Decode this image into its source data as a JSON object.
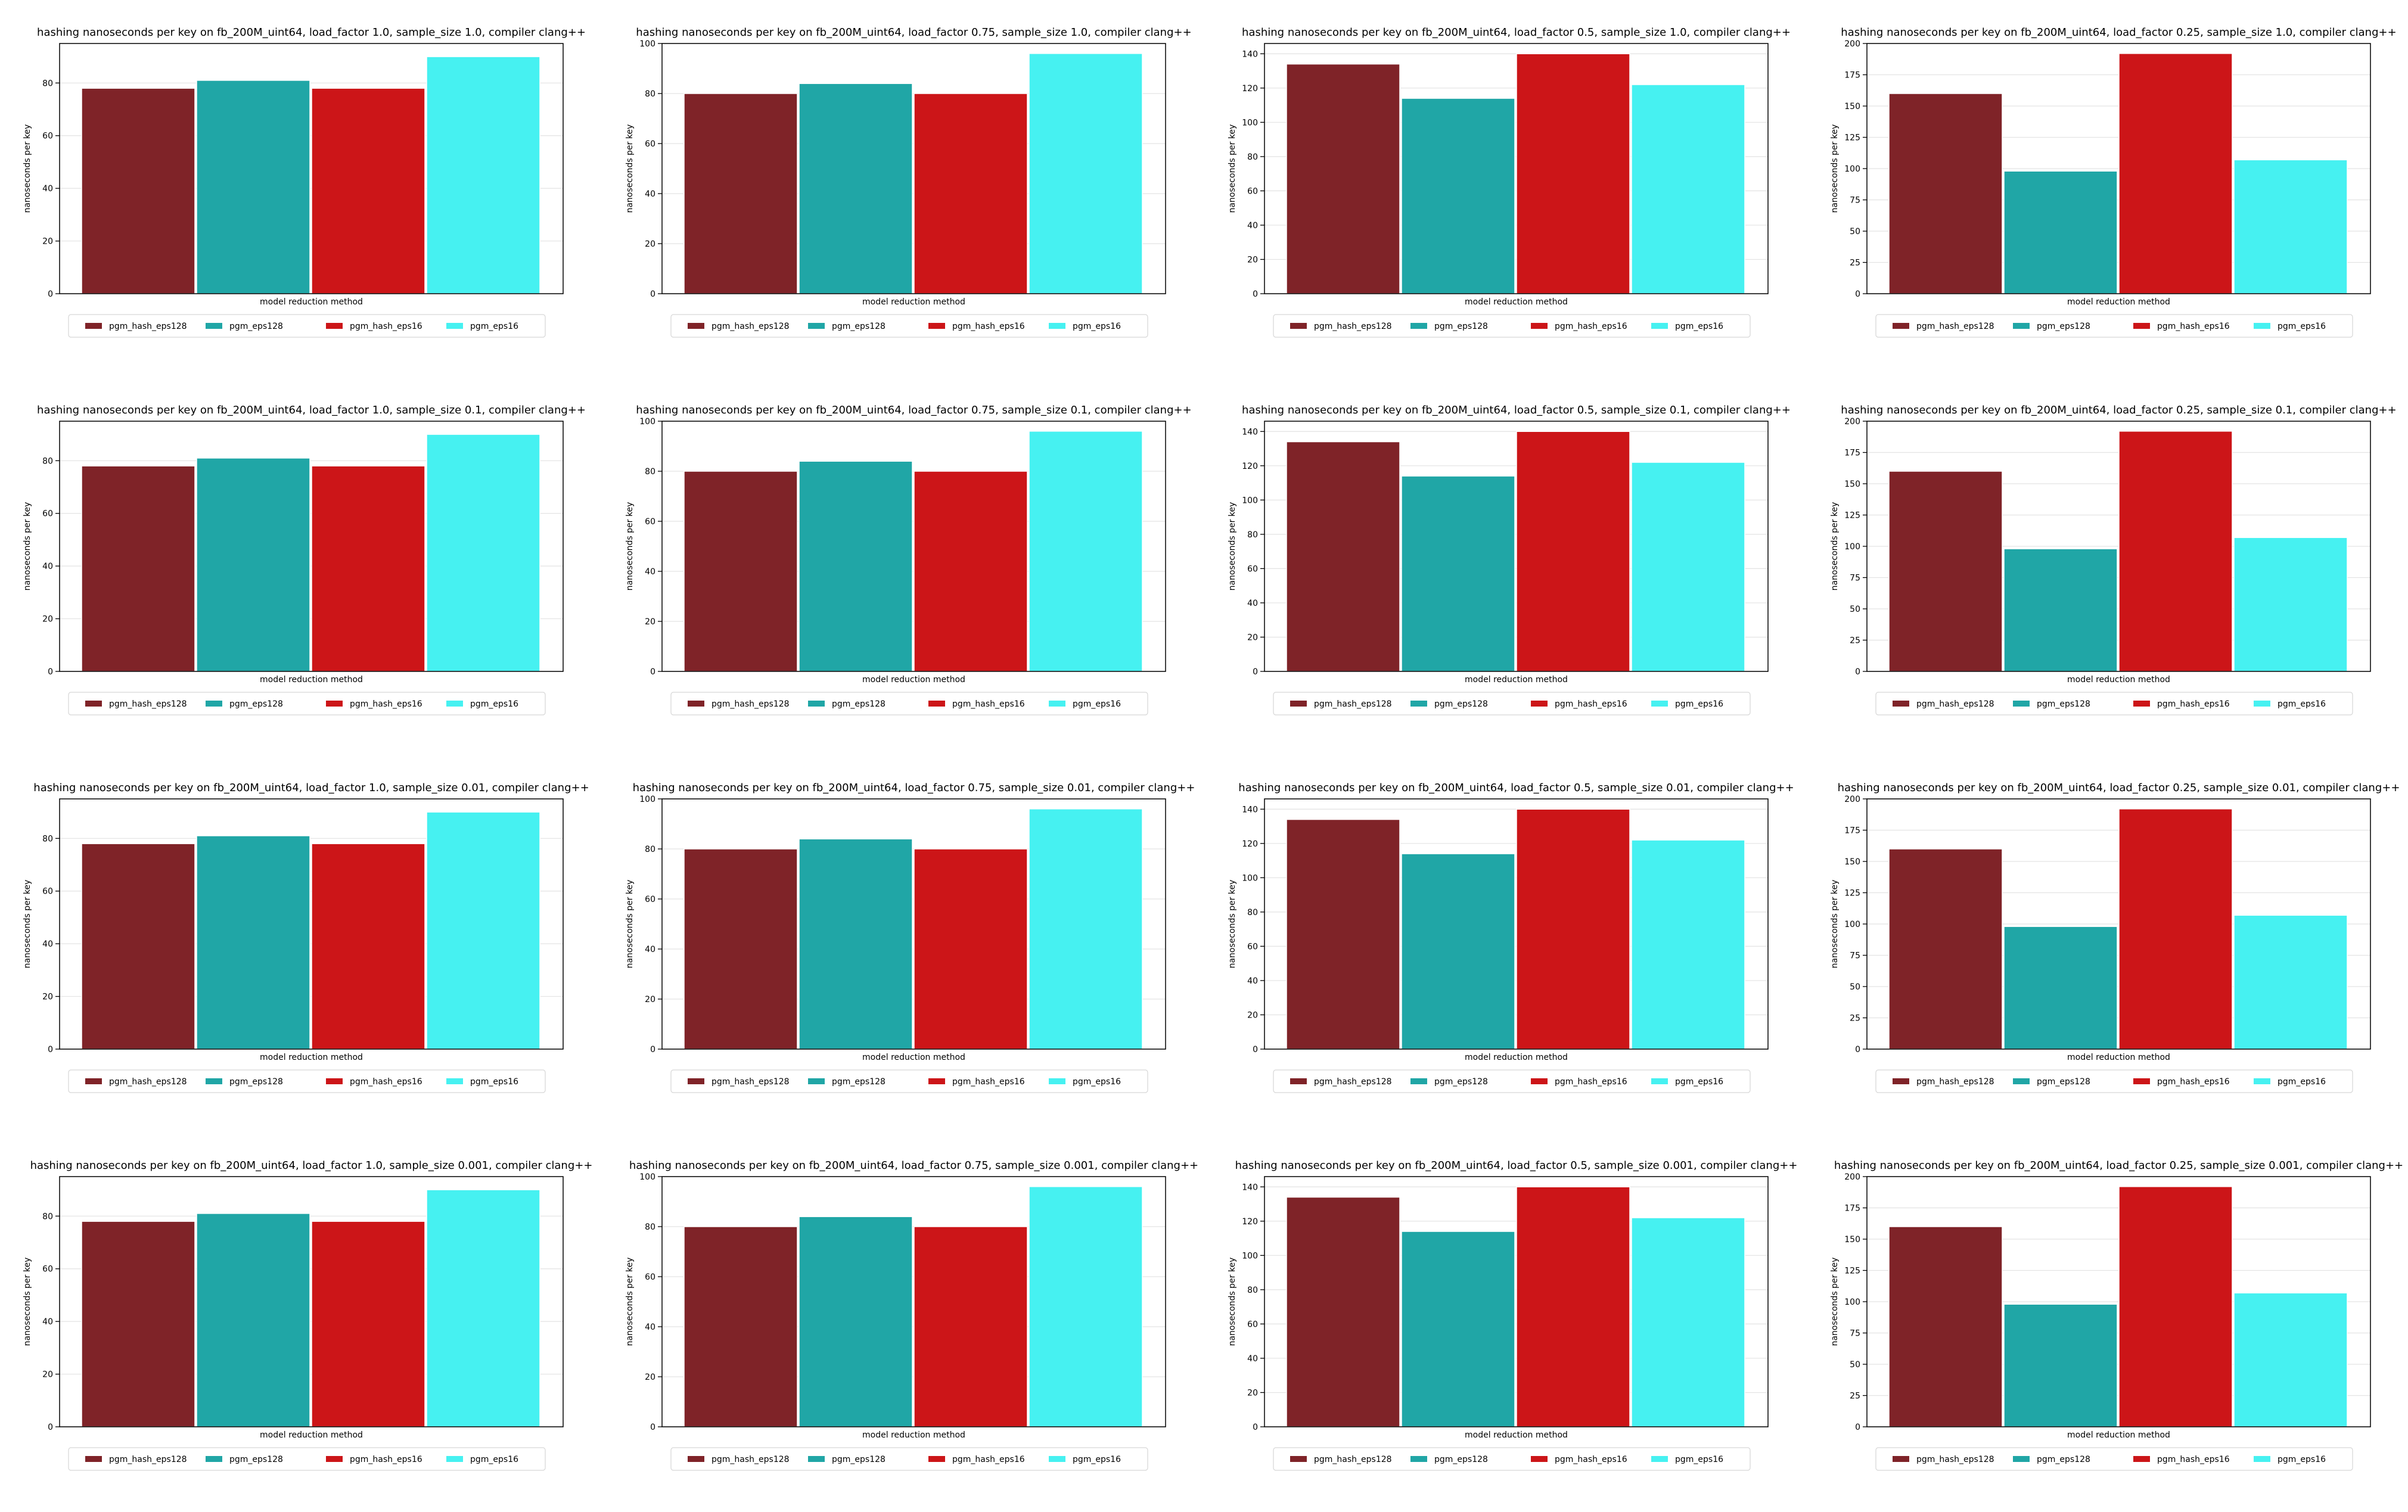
{
  "chart_data": {
    "type": "bar",
    "layout": {
      "rows": 4,
      "cols": 4
    },
    "series_names": [
      "pgm_hash_eps128",
      "pgm_eps128",
      "pgm_hash_eps16",
      "pgm_eps16"
    ],
    "colors": [
      "#7f2328",
      "#20a6a6",
      "#cc1518",
      "#46f1f1"
    ],
    "grid": true,
    "legend_position": "below",
    "charts": [
      {
        "title": "hashing nanoseconds per key on fb_200M_uint64, load_factor 1.0, sample_size 1.0, compiler clang++",
        "xlabel": "model reduction method",
        "ylabel": "nanoseconds per key",
        "ylim": [
          0,
          95
        ],
        "yticks": [
          0,
          20,
          40,
          60,
          80
        ],
        "series": [
          {
            "name": "pgm_hash_eps128",
            "values": [
              78
            ]
          },
          {
            "name": "pgm_eps128",
            "values": [
              81
            ]
          },
          {
            "name": "pgm_hash_eps16",
            "values": [
              78
            ]
          },
          {
            "name": "pgm_eps16",
            "values": [
              90
            ]
          }
        ]
      },
      {
        "title": "hashing nanoseconds per key on fb_200M_uint64, load_factor 0.75, sample_size 1.0, compiler clang++",
        "xlabel": "model reduction method",
        "ylabel": "nanoseconds per key",
        "ylim": [
          0,
          100
        ],
        "yticks": [
          0,
          20,
          40,
          60,
          80,
          100
        ],
        "series": [
          {
            "name": "pgm_hash_eps128",
            "values": [
              80
            ]
          },
          {
            "name": "pgm_eps128",
            "values": [
              84
            ]
          },
          {
            "name": "pgm_hash_eps16",
            "values": [
              80
            ]
          },
          {
            "name": "pgm_eps16",
            "values": [
              96
            ]
          }
        ]
      },
      {
        "title": "hashing nanoseconds per key on fb_200M_uint64, load_factor 0.5, sample_size 1.0, compiler clang++",
        "xlabel": "model reduction method",
        "ylabel": "nanoseconds per key",
        "ylim": [
          0,
          146
        ],
        "yticks": [
          0,
          20,
          40,
          60,
          80,
          100,
          120,
          140
        ],
        "series": [
          {
            "name": "pgm_hash_eps128",
            "values": [
              134
            ]
          },
          {
            "name": "pgm_eps128",
            "values": [
              114
            ]
          },
          {
            "name": "pgm_hash_eps16",
            "values": [
              140
            ]
          },
          {
            "name": "pgm_eps16",
            "values": [
              122
            ]
          }
        ]
      },
      {
        "title": "hashing nanoseconds per key on fb_200M_uint64, load_factor 0.25, sample_size 1.0, compiler clang++",
        "xlabel": "model reduction method",
        "ylabel": "nanoseconds per key",
        "ylim": [
          0,
          200
        ],
        "yticks": [
          0,
          25,
          50,
          75,
          100,
          125,
          150,
          175,
          200
        ],
        "series": [
          {
            "name": "pgm_hash_eps128",
            "values": [
              160
            ]
          },
          {
            "name": "pgm_eps128",
            "values": [
              98
            ]
          },
          {
            "name": "pgm_hash_eps16",
            "values": [
              192
            ]
          },
          {
            "name": "pgm_eps16",
            "values": [
              107
            ]
          }
        ]
      },
      {
        "title": "hashing nanoseconds per key on fb_200M_uint64, load_factor 1.0, sample_size 0.1, compiler clang++",
        "xlabel": "model reduction method",
        "ylabel": "nanoseconds per key",
        "ylim": [
          0,
          95
        ],
        "yticks": [
          0,
          20,
          40,
          60,
          80
        ],
        "series": [
          {
            "name": "pgm_hash_eps128",
            "values": [
              78
            ]
          },
          {
            "name": "pgm_eps128",
            "values": [
              81
            ]
          },
          {
            "name": "pgm_hash_eps16",
            "values": [
              78
            ]
          },
          {
            "name": "pgm_eps16",
            "values": [
              90
            ]
          }
        ]
      },
      {
        "title": "hashing nanoseconds per key on fb_200M_uint64, load_factor 0.75, sample_size 0.1, compiler clang++",
        "xlabel": "model reduction method",
        "ylabel": "nanoseconds per key",
        "ylim": [
          0,
          100
        ],
        "yticks": [
          0,
          20,
          40,
          60,
          80,
          100
        ],
        "series": [
          {
            "name": "pgm_hash_eps128",
            "values": [
              80
            ]
          },
          {
            "name": "pgm_eps128",
            "values": [
              84
            ]
          },
          {
            "name": "pgm_hash_eps16",
            "values": [
              80
            ]
          },
          {
            "name": "pgm_eps16",
            "values": [
              96
            ]
          }
        ]
      },
      {
        "title": "hashing nanoseconds per key on fb_200M_uint64, load_factor 0.5, sample_size 0.1, compiler clang++",
        "xlabel": "model reduction method",
        "ylabel": "nanoseconds per key",
        "ylim": [
          0,
          146
        ],
        "yticks": [
          0,
          20,
          40,
          60,
          80,
          100,
          120,
          140
        ],
        "series": [
          {
            "name": "pgm_hash_eps128",
            "values": [
              134
            ]
          },
          {
            "name": "pgm_eps128",
            "values": [
              114
            ]
          },
          {
            "name": "pgm_hash_eps16",
            "values": [
              140
            ]
          },
          {
            "name": "pgm_eps16",
            "values": [
              122
            ]
          }
        ]
      },
      {
        "title": "hashing nanoseconds per key on fb_200M_uint64, load_factor 0.25, sample_size 0.1, compiler clang++",
        "xlabel": "model reduction method",
        "ylabel": "nanoseconds per key",
        "ylim": [
          0,
          200
        ],
        "yticks": [
          0,
          25,
          50,
          75,
          100,
          125,
          150,
          175,
          200
        ],
        "series": [
          {
            "name": "pgm_hash_eps128",
            "values": [
              160
            ]
          },
          {
            "name": "pgm_eps128",
            "values": [
              98
            ]
          },
          {
            "name": "pgm_hash_eps16",
            "values": [
              192
            ]
          },
          {
            "name": "pgm_eps16",
            "values": [
              107
            ]
          }
        ]
      },
      {
        "title": "hashing nanoseconds per key on fb_200M_uint64, load_factor 1.0, sample_size 0.01, compiler clang++",
        "xlabel": "model reduction method",
        "ylabel": "nanoseconds per key",
        "ylim": [
          0,
          95
        ],
        "yticks": [
          0,
          20,
          40,
          60,
          80
        ],
        "series": [
          {
            "name": "pgm_hash_eps128",
            "values": [
              78
            ]
          },
          {
            "name": "pgm_eps128",
            "values": [
              81
            ]
          },
          {
            "name": "pgm_hash_eps16",
            "values": [
              78
            ]
          },
          {
            "name": "pgm_eps16",
            "values": [
              90
            ]
          }
        ]
      },
      {
        "title": "hashing nanoseconds per key on fb_200M_uint64, load_factor 0.75, sample_size 0.01, compiler clang++",
        "xlabel": "model reduction method",
        "ylabel": "nanoseconds per key",
        "ylim": [
          0,
          100
        ],
        "yticks": [
          0,
          20,
          40,
          60,
          80,
          100
        ],
        "series": [
          {
            "name": "pgm_hash_eps128",
            "values": [
              80
            ]
          },
          {
            "name": "pgm_eps128",
            "values": [
              84
            ]
          },
          {
            "name": "pgm_hash_eps16",
            "values": [
              80
            ]
          },
          {
            "name": "pgm_eps16",
            "values": [
              96
            ]
          }
        ]
      },
      {
        "title": "hashing nanoseconds per key on fb_200M_uint64, load_factor 0.5, sample_size 0.01, compiler clang++",
        "xlabel": "model reduction method",
        "ylabel": "nanoseconds per key",
        "ylim": [
          0,
          146
        ],
        "yticks": [
          0,
          20,
          40,
          60,
          80,
          100,
          120,
          140
        ],
        "series": [
          {
            "name": "pgm_hash_eps128",
            "values": [
              134
            ]
          },
          {
            "name": "pgm_eps128",
            "values": [
              114
            ]
          },
          {
            "name": "pgm_hash_eps16",
            "values": [
              140
            ]
          },
          {
            "name": "pgm_eps16",
            "values": [
              122
            ]
          }
        ]
      },
      {
        "title": "hashing nanoseconds per key on fb_200M_uint64, load_factor 0.25, sample_size 0.01, compiler clang++",
        "xlabel": "model reduction method",
        "ylabel": "nanoseconds per key",
        "ylim": [
          0,
          200
        ],
        "yticks": [
          0,
          25,
          50,
          75,
          100,
          125,
          150,
          175,
          200
        ],
        "series": [
          {
            "name": "pgm_hash_eps128",
            "values": [
              160
            ]
          },
          {
            "name": "pgm_eps128",
            "values": [
              98
            ]
          },
          {
            "name": "pgm_hash_eps16",
            "values": [
              192
            ]
          },
          {
            "name": "pgm_eps16",
            "values": [
              107
            ]
          }
        ]
      },
      {
        "title": "hashing nanoseconds per key on fb_200M_uint64, load_factor 1.0, sample_size 0.001, compiler clang++",
        "xlabel": "model reduction method",
        "ylabel": "nanoseconds per key",
        "ylim": [
          0,
          95
        ],
        "yticks": [
          0,
          20,
          40,
          60,
          80
        ],
        "series": [
          {
            "name": "pgm_hash_eps128",
            "values": [
              78
            ]
          },
          {
            "name": "pgm_eps128",
            "values": [
              81
            ]
          },
          {
            "name": "pgm_hash_eps16",
            "values": [
              78
            ]
          },
          {
            "name": "pgm_eps16",
            "values": [
              90
            ]
          }
        ]
      },
      {
        "title": "hashing nanoseconds per key on fb_200M_uint64, load_factor 0.75, sample_size 0.001, compiler clang++",
        "xlabel": "model reduction method",
        "ylabel": "nanoseconds per key",
        "ylim": [
          0,
          100
        ],
        "yticks": [
          0,
          20,
          40,
          60,
          80,
          100
        ],
        "series": [
          {
            "name": "pgm_hash_eps128",
            "values": [
              80
            ]
          },
          {
            "name": "pgm_eps128",
            "values": [
              84
            ]
          },
          {
            "name": "pgm_hash_eps16",
            "values": [
              80
            ]
          },
          {
            "name": "pgm_eps16",
            "values": [
              96
            ]
          }
        ]
      },
      {
        "title": "hashing nanoseconds per key on fb_200M_uint64, load_factor 0.5, sample_size 0.001, compiler clang++",
        "xlabel": "model reduction method",
        "ylabel": "nanoseconds per key",
        "ylim": [
          0,
          146
        ],
        "yticks": [
          0,
          20,
          40,
          60,
          80,
          100,
          120,
          140
        ],
        "series": [
          {
            "name": "pgm_hash_eps128",
            "values": [
              134
            ]
          },
          {
            "name": "pgm_eps128",
            "values": [
              114
            ]
          },
          {
            "name": "pgm_hash_eps16",
            "values": [
              140
            ]
          },
          {
            "name": "pgm_eps16",
            "values": [
              122
            ]
          }
        ]
      },
      {
        "title": "hashing nanoseconds per key on fb_200M_uint64, load_factor 0.25, sample_size 0.001, compiler clang++",
        "xlabel": "model reduction method",
        "ylabel": "nanoseconds per key",
        "ylim": [
          0,
          200
        ],
        "yticks": [
          0,
          25,
          50,
          75,
          100,
          125,
          150,
          175,
          200
        ],
        "series": [
          {
            "name": "pgm_hash_eps128",
            "values": [
              160
            ]
          },
          {
            "name": "pgm_eps128",
            "values": [
              98
            ]
          },
          {
            "name": "pgm_hash_eps16",
            "values": [
              192
            ]
          },
          {
            "name": "pgm_eps16",
            "values": [
              107
            ]
          }
        ]
      }
    ]
  }
}
